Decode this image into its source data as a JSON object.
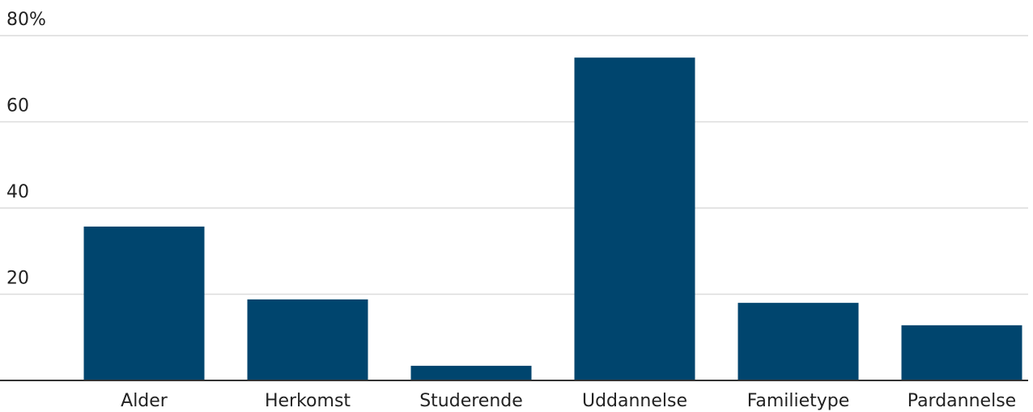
{
  "chart_data": {
    "type": "bar",
    "categories": [
      "Alder",
      "Herkomst",
      "Studerende",
      "Uddannelse",
      "Familietype",
      "Pardannelse"
    ],
    "values": [
      35.7,
      18.8,
      3.4,
      74.9,
      18.0,
      12.8
    ],
    "color": "#00456e",
    "ylim": [
      0,
      80
    ],
    "yticks": [
      20,
      40,
      60,
      {
        "value": 80,
        "label": "80%"
      }
    ],
    "grid": true
  }
}
